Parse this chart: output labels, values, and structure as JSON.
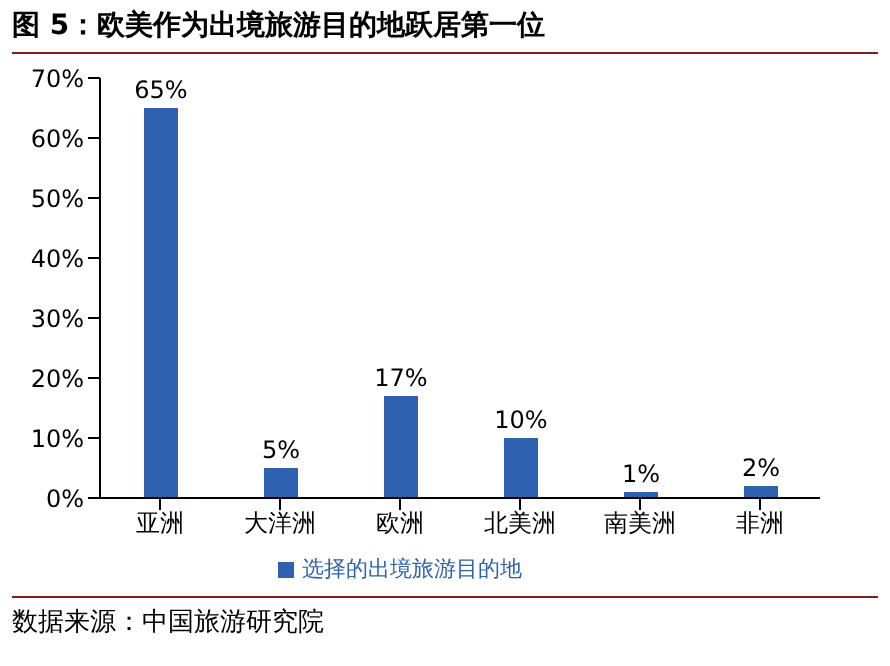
{
  "chart_data": {
    "type": "bar",
    "title": "图 5：欧美作为出境旅游目的地跃居第一位",
    "categories": [
      "亚洲",
      "大洋洲",
      "欧洲",
      "北美洲",
      "南美洲",
      "非洲"
    ],
    "series": [
      {
        "name": "选择的出境旅游目的地",
        "color": "#2e62b0",
        "values": [
          65,
          5,
          17,
          10,
          1,
          2
        ]
      }
    ],
    "value_labels": [
      "65%",
      "5%",
      "17%",
      "10%",
      "1%",
      "2%"
    ],
    "ylim": [
      0,
      70
    ],
    "yticks": [
      {
        "value": 0,
        "label": "0%"
      },
      {
        "value": 10,
        "label": "10%"
      },
      {
        "value": 20,
        "label": "20%"
      },
      {
        "value": 30,
        "label": "30%"
      },
      {
        "value": 40,
        "label": "40%"
      },
      {
        "value": 50,
        "label": "50%"
      },
      {
        "value": 60,
        "label": "60%"
      },
      {
        "value": 70,
        "label": "70%"
      }
    ],
    "grid": false,
    "legend": "bottom",
    "annotations": [
      "数据来源：中国旅游研究院"
    ]
  }
}
